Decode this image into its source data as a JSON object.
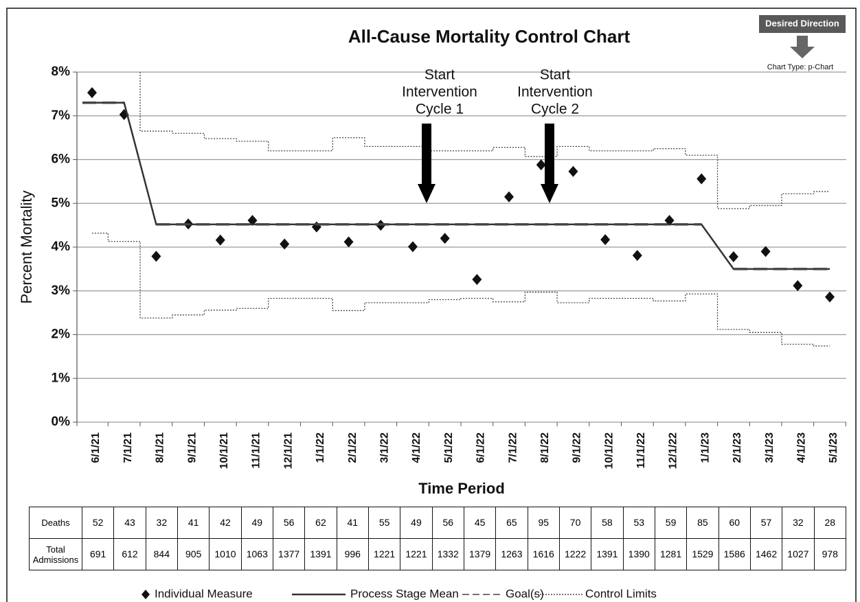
{
  "chart_data": {
    "type": "line",
    "title": "All-Cause Mortality Control Chart",
    "x_label": "Time Period",
    "y_label": "Percent Mortality",
    "categories": [
      "6/1/21",
      "7/1/21",
      "8/1/21",
      "9/1/21",
      "10/1/21",
      "11/1/21",
      "12/1/21",
      "1/1/22",
      "2/1/22",
      "3/1/22",
      "4/1/22",
      "5/1/22",
      "6/1/22",
      "7/1/22",
      "8/1/22",
      "9/1/22",
      "10/1/22",
      "11/1/22",
      "12/1/22",
      "1/1/23",
      "2/1/23",
      "3/1/23",
      "4/1/23",
      "5/1/23"
    ],
    "ylim": [
      0,
      8
    ],
    "yticks": [
      {
        "value": 0,
        "label": "0%"
      },
      {
        "value": 1,
        "label": "1%"
      },
      {
        "value": 2,
        "label": "2%"
      },
      {
        "value": 3,
        "label": "3%"
      },
      {
        "value": 4,
        "label": "4%"
      },
      {
        "value": 5,
        "label": "5%"
      },
      {
        "value": 6,
        "label": "6%"
      },
      {
        "value": 7,
        "label": "7%"
      },
      {
        "value": 8,
        "label": "8%"
      }
    ],
    "grid": true,
    "series": [
      {
        "name": "Individual Measure",
        "color": "#111111",
        "marker": "diamond",
        "values": [
          7.53,
          7.03,
          3.79,
          4.53,
          4.16,
          4.61,
          4.07,
          4.46,
          4.12,
          4.5,
          4.01,
          4.2,
          3.26,
          5.15,
          5.88,
          5.73,
          4.17,
          3.81,
          4.61,
          5.56,
          3.78,
          3.9,
          3.12,
          2.86
        ]
      },
      {
        "name": "Process Stage Mean",
        "color": "#333333",
        "values": [
          7.3,
          7.3,
          4.52,
          4.52,
          4.52,
          4.52,
          4.52,
          4.52,
          4.52,
          4.52,
          4.52,
          4.52,
          4.52,
          4.52,
          4.52,
          4.52,
          4.52,
          4.52,
          4.52,
          4.52,
          3.5,
          3.5,
          3.5,
          3.5
        ]
      },
      {
        "name": "Goal(s)",
        "color": "#444444",
        "dash": true,
        "values": [
          7.3,
          7.3,
          4.52,
          4.52,
          4.52,
          4.52,
          4.52,
          4.52,
          4.52,
          4.52,
          4.52,
          4.52,
          4.52,
          4.52,
          4.52,
          4.52,
          4.52,
          4.52,
          4.52,
          4.52,
          3.5,
          3.5,
          3.5,
          3.5
        ]
      }
    ],
    "control_limits": {
      "name": "Control Limits",
      "color": "#444444",
      "upper": [
        null,
        null,
        6.65,
        6.6,
        6.48,
        6.42,
        6.2,
        6.2,
        6.5,
        6.3,
        6.3,
        6.2,
        6.2,
        6.28,
        6.07,
        6.3,
        6.2,
        6.2,
        6.25,
        6.1,
        4.88,
        4.95,
        5.22,
        5.27
      ],
      "lower": [
        4.32,
        4.13,
        2.38,
        2.45,
        2.56,
        2.6,
        2.83,
        2.83,
        2.55,
        2.73,
        2.73,
        2.8,
        2.83,
        2.75,
        2.97,
        2.73,
        2.83,
        2.83,
        2.77,
        2.93,
        2.12,
        2.05,
        1.78,
        1.74
      ]
    },
    "annotations": [
      {
        "lines": [
          "Start",
          "Intervention",
          "Cycle 1"
        ]
      },
      {
        "lines": [
          "Start",
          "Intervention",
          "Cycle 2"
        ]
      }
    ],
    "desired_direction": "Desired Direction",
    "chart_type_note": "Chart Type: p-Chart",
    "table": {
      "row_labels": [
        "Deaths",
        "Total Admissions"
      ],
      "rows": [
        [
          52,
          43,
          32,
          41,
          42,
          49,
          56,
          62,
          41,
          55,
          49,
          56,
          45,
          65,
          95,
          70,
          58,
          53,
          59,
          85,
          60,
          57,
          32,
          28
        ],
        [
          691,
          612,
          844,
          905,
          1010,
          1063,
          1377,
          1391,
          996,
          1221,
          1221,
          1332,
          1379,
          1263,
          1616,
          1222,
          1391,
          1390,
          1281,
          1529,
          1586,
          1462,
          1027,
          978
        ]
      ]
    }
  }
}
